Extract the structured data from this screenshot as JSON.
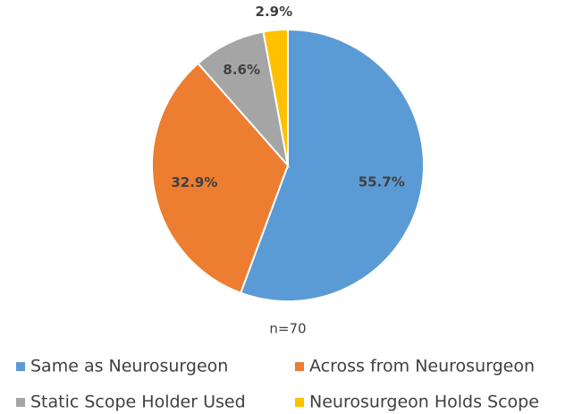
{
  "chart_data": {
    "type": "pie",
    "categories": [
      "Same as Neurosurgeon",
      "Across from Neurosurgeon",
      "Static Scope Holder Used",
      "Neurosurgeon Holds Scope"
    ],
    "values": [
      55.7,
      32.9,
      8.6,
      2.9
    ],
    "value_labels": [
      "55.7%",
      "32.9%",
      "8.6%",
      "2.9%"
    ],
    "colors": [
      "#5b9bd5",
      "#ed7d31",
      "#a5a5a5",
      "#ffc000"
    ],
    "annotation": "n=70",
    "legend": "bottom"
  }
}
